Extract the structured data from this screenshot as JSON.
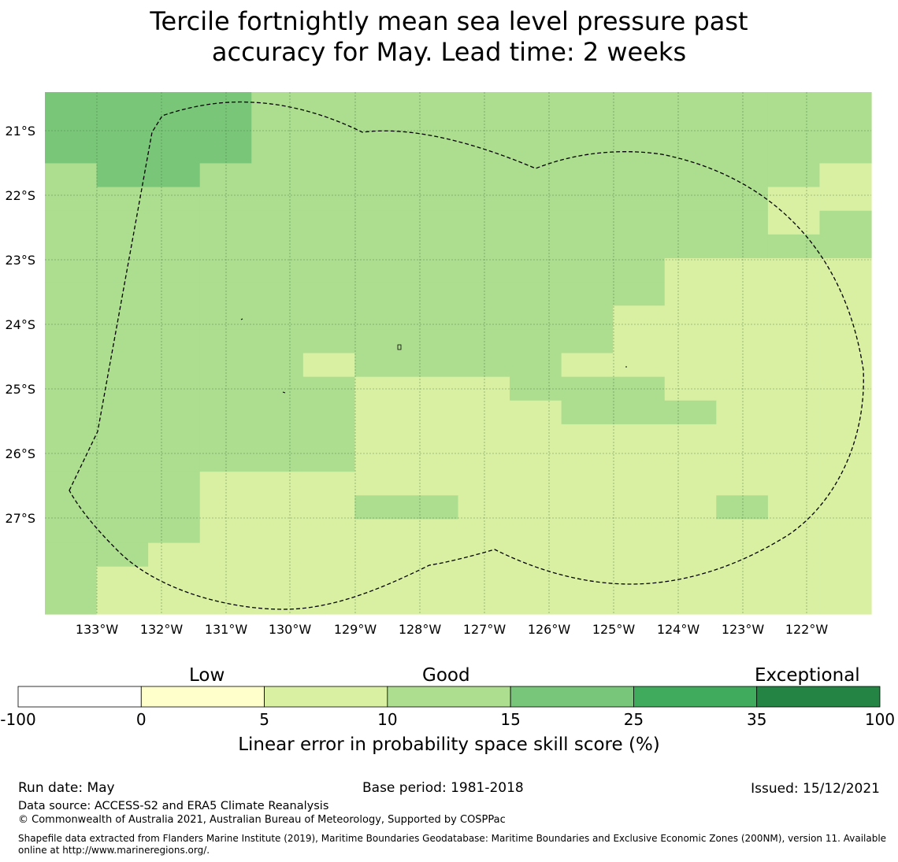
{
  "title": {
    "line1": "Tercile fortnightly mean sea level pressure past",
    "line2": "accuracy for May. Lead time: 2 weeks"
  },
  "map": {
    "lon_labels": [
      "133°W",
      "132°W",
      "131°W",
      "130°W",
      "129°W",
      "128°W",
      "127°W",
      "126°W",
      "125°W",
      "124°W",
      "123°W",
      "122°W"
    ],
    "lat_labels": [
      "21°S",
      "22°S",
      "23°S",
      "24°S",
      "25°S",
      "26°S",
      "27°S"
    ],
    "colors": {
      "c1": "#79c679",
      "c2": "#addd8e",
      "c3": "#d9f0a3"
    },
    "grid_rows": [
      "1111222222222222",
      "1111222222222222",
      "1111222222222222",
      "2112222222222223",
      "2222222222222233",
      "2222222222222232",
      "2222222222222222",
      "2222222222223333",
      "2222222222223333",
      "2222222222233333",
      "2222222222233333",
      "2222232222333333",
      "2222223332223333",
      "2222223333222333",
      "2222223333333333",
      "2222223333333333",
      "2223333333333333",
      "2223332233333233",
      "2223333333333333",
      "2233333333333333",
      "2333333333333333",
      "2333333333333333"
    ]
  },
  "colorbar": {
    "category_labels": [
      "Low",
      "Good",
      "Exceptional"
    ],
    "ticks": [
      "-100",
      "0",
      "5",
      "10",
      "15",
      "25",
      "35",
      "100"
    ],
    "colors": [
      "#ffffff",
      "#ffffcc",
      "#d9f0a3",
      "#addd8e",
      "#78c679",
      "#41ab5d",
      "#238443"
    ],
    "title": "Linear error in probability space skill score (%)"
  },
  "footer": {
    "run_date": "Run date: May",
    "base_period": "Base period: 1981-2018",
    "issued": "Issued: 15/12/2021",
    "data_source": "Data source: ACCESS-S2 and ERA5 Climate Reanalysis",
    "copyright": "© Commonwealth of Australia 2021, Australian Bureau of Meteorology, Supported by COSPPac",
    "shapefile": "Shapefile data extracted from Flanders Marine Institute (2019), Maritime Boundaries Geodatabase: Maritime Boundaries and Exclusive Economic Zones (200NM), version 11. Available online at http://www.marineregions.org/."
  }
}
